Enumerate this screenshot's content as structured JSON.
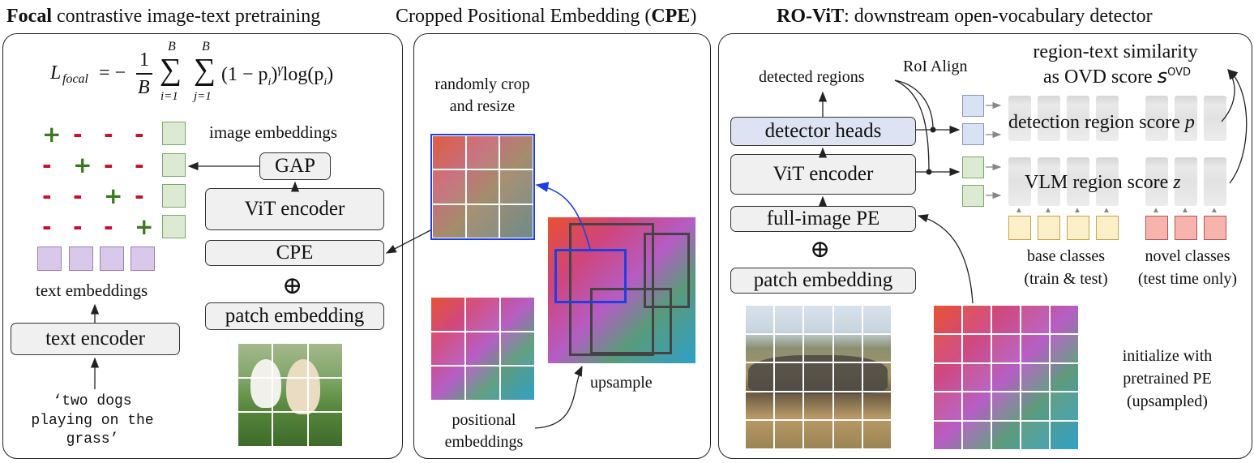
{
  "headers": {
    "left_bold": "Focal",
    "left_rest": " contrastive image-text pretraining",
    "middle_rest": "Cropped Positional Embedding (",
    "middle_bold": "CPE",
    "middle_close": ")",
    "right_bold": "RO-ViT",
    "right_rest": ": downstream open-vocabulary detector"
  },
  "left": {
    "formula_lhs": "L",
    "formula_sub": "focal",
    "formula_eq": "= −",
    "frac_num": "1",
    "frac_den": "B",
    "sum_top": "B",
    "sum_bot_i": "i=1",
    "sum_bot_j": "j=1",
    "sum_sym": "∑",
    "formula_body": "(1 − p",
    "formula_body_sub": "i",
    "formula_body2": ")",
    "formula_gamma": "γ",
    "formula_log": "log(p",
    "formula_log_sub": "i",
    "formula_log_end": ")",
    "matrix": [
      [
        "+",
        "-",
        "-",
        "-"
      ],
      [
        "-",
        "+",
        "-",
        "-"
      ],
      [
        "-",
        "-",
        "+",
        "-"
      ],
      [
        "-",
        "-",
        "-",
        "+"
      ]
    ],
    "image_embeddings": "image embeddings",
    "gap": "GAP",
    "vit_encoder": "ViT encoder",
    "cpe": "CPE",
    "oplus": "⊕",
    "patch_embedding": "patch embedding",
    "text_embeddings": "text embeddings",
    "text_encoder": "text encoder",
    "caption_1": "‘two dogs",
    "caption_2": "playing on the",
    "caption_3": "grass’",
    "colors": {
      "plus": "#3a7a1e",
      "minus": "#c8102e",
      "image_sq": "#dcead3",
      "text_sq": "#d9c8ea"
    }
  },
  "middle": {
    "crop_label_1": "randomly crop",
    "crop_label_2": "and resize",
    "upsample": "upsample",
    "pos_label_1": "positional",
    "pos_label_2": "embeddings",
    "crop_box_color": "#1f3fe0"
  },
  "right": {
    "roi_align": "RoI Align",
    "detected_regions": "detected regions",
    "detector_heads": "detector heads",
    "vit_encoder": "ViT encoder",
    "full_image_pe": "full-image PE",
    "oplus": "⊕",
    "patch_embedding": "patch embedding",
    "similarity_1": "region-text similarity",
    "similarity_2": "as OVD score ",
    "similarity_s": "s",
    "similarity_sup": "OVD",
    "detection_score": "detection region score ",
    "detection_var": "p",
    "vlm_score": "VLM region score ",
    "vlm_var": "z",
    "base_1": "base classes",
    "base_2": "(train & test)",
    "novel_1": "novel classes",
    "novel_2": "(test time only)",
    "init_1": "initialize with",
    "init_2": "pretrained PE",
    "init_3": "(upsampled)",
    "colors": {
      "det_box": "#dde3f2",
      "base_sq": "#fdf0c8",
      "novel_sq": "#f7b3ae",
      "det_sq": "#d8e2f4",
      "vlm_sq": "#dcead3"
    }
  }
}
